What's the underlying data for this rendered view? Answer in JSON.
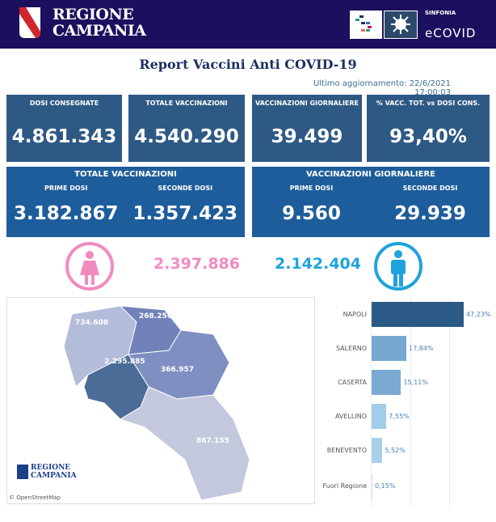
{
  "header": {
    "region_name_line1": "REGIONE",
    "region_name_line2": "CAMPANIA",
    "brand_small": "SINFONIA",
    "brand_big": "eCOVID"
  },
  "title": "Report Vaccini Anti COVID-19",
  "updated": "Ultimo aggiornamento: 22/6/2021 17:00:03",
  "cards": [
    {
      "label": "DOSI  CONSEGNATE",
      "value": "4.861.343"
    },
    {
      "label": "TOTALE VACCINAZIONI",
      "value": "4.540.290"
    },
    {
      "label": "VACCINAZIONI GIORNALIERE",
      "value": "39.499"
    },
    {
      "label": "% VACC. TOT. vs DOSI CONS.",
      "value": "93,40%"
    }
  ],
  "totale": {
    "title": "TOTALE VACCINAZIONI",
    "prime_label": "PRIME DOSI",
    "prime": "3.182.867",
    "seconde_label": "SECONDE DOSI",
    "seconde": "1.357.423"
  },
  "giornaliere": {
    "title": "VACCINAZIONI GIORNALIERE",
    "prime_label": "PRIME DOSI",
    "prime": "9.560",
    "seconde_label": "SECONDE DOSI",
    "seconde": "29.939"
  },
  "gender": {
    "female": "2.397.886",
    "male": "2.142.404",
    "female_color": "#f18bbf",
    "male_color": "#1fa3dc"
  },
  "map": {
    "caserta": "734.608",
    "benevento": "268.256",
    "avellino": "366.957",
    "napoli": "2.295.885",
    "salerno": "867.155",
    "logo_line1": "REGIONE",
    "logo_line2": "CAMPANIA",
    "credit": "© OpenStreetMap"
  },
  "chart_data": {
    "type": "bar",
    "orientation": "horizontal",
    "categories": [
      "NAPOLI",
      "SALERNO",
      "CASERTA",
      "AVELLINO",
      "BENEVENTO",
      "Fuori Regione"
    ],
    "values": [
      47.23,
      17.84,
      15.11,
      7.55,
      5.52,
      0.15
    ],
    "labels": [
      "47,23%",
      "17,84%",
      "15,11%",
      "7,55%",
      "5,52%",
      "0,15%"
    ],
    "colors": [
      "#2c5a86",
      "#77a8d2",
      "#7aaad4",
      "#a3cce8",
      "#a8d0ea",
      "#c8e0f0"
    ]
  }
}
